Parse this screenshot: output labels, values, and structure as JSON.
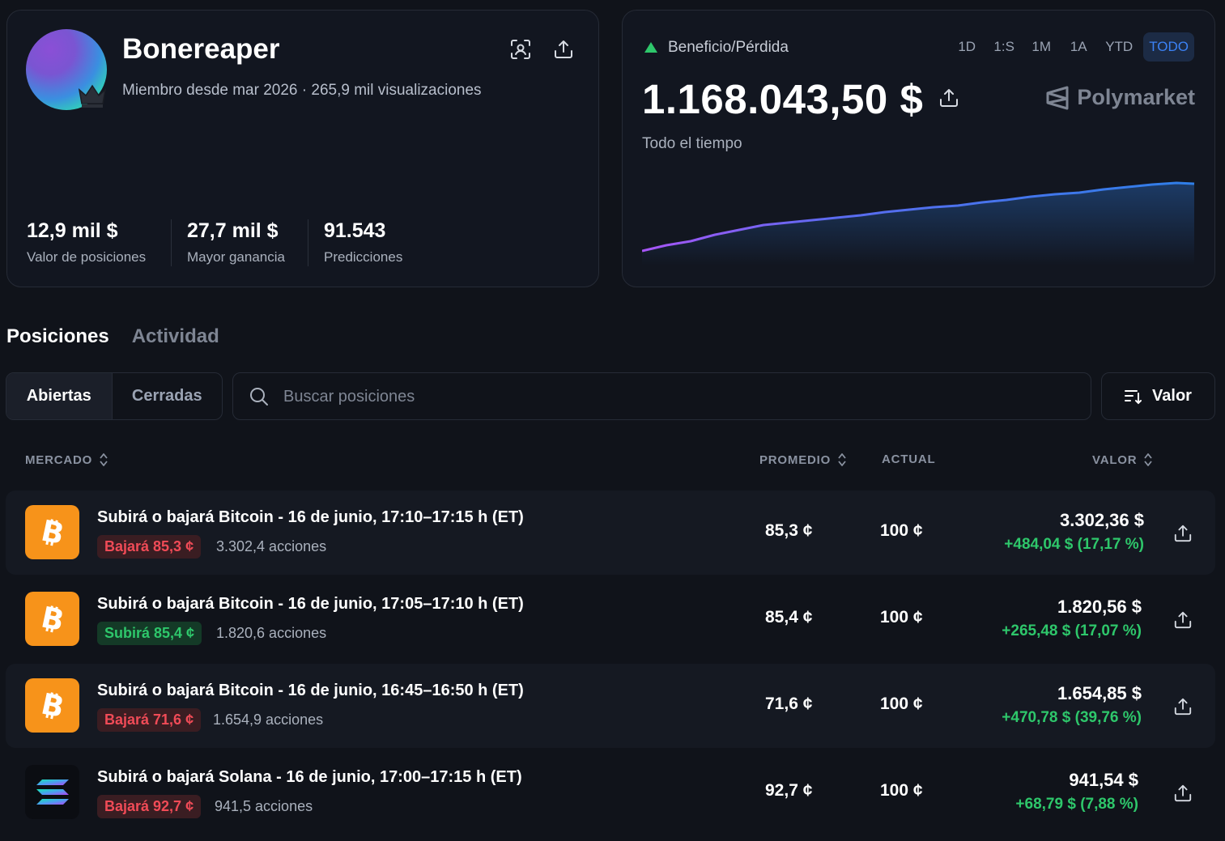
{
  "profile": {
    "username": "Bonereaper",
    "member_info": "Miembro desde mar 2026 · 265,9 mil visualizaciones",
    "stats": [
      {
        "value": "12,9 mil $",
        "label": "Valor de posiciones"
      },
      {
        "value": "27,7 mil $",
        "label": "Mayor ganancia"
      },
      {
        "value": "91.543",
        "label": "Predicciones"
      }
    ]
  },
  "pnl": {
    "label": "Beneficio/Pérdida",
    "value": "1.168.043,50 $",
    "period_label": "Todo el tiempo",
    "brand": "Polymarket",
    "ranges": [
      "1D",
      "1:S",
      "1M",
      "1A",
      "YTD",
      "TODO"
    ],
    "active_range": "TODO",
    "colors": {
      "accent": "#3b82f6",
      "line_start": "#a855f7",
      "line_end": "#2f7fe8",
      "positive": "#2ec76b"
    }
  },
  "tabs": {
    "positions": "Posiciones",
    "activity": "Actividad"
  },
  "filters": {
    "open": "Abiertas",
    "closed": "Cerradas"
  },
  "search": {
    "placeholder": "Buscar posiciones"
  },
  "sort": {
    "label": "Valor"
  },
  "columns": {
    "market": "MERCADO",
    "average": "PROMEDIO",
    "current": "ACTUAL",
    "value": "VALOR"
  },
  "positions": [
    {
      "asset": "bitcoin-icon",
      "title": "Subirá o bajará Bitcoin - 16 de junio, 17:10–17:15 h (ET)",
      "side": "Bajará 85,3 ¢",
      "direction": "down",
      "shares": "3.302,4 acciones",
      "average": "85,3 ¢",
      "current": "100 ¢",
      "value": "3.302,36 $",
      "change": "+484,04 $ (17,17 %)"
    },
    {
      "asset": "bitcoin-icon",
      "title": "Subirá o bajará Bitcoin - 16 de junio, 17:05–17:10 h (ET)",
      "side": "Subirá 85,4 ¢",
      "direction": "up",
      "shares": "1.820,6 acciones",
      "average": "85,4 ¢",
      "current": "100 ¢",
      "value": "1.820,56 $",
      "change": "+265,48 $ (17,07 %)"
    },
    {
      "asset": "bitcoin-icon",
      "title": "Subirá o bajará Bitcoin - 16 de junio, 16:45–16:50 h (ET)",
      "side": "Bajará 71,6 ¢",
      "direction": "down",
      "shares": "1.654,9 acciones",
      "average": "71,6 ¢",
      "current": "100 ¢",
      "value": "1.654,85 $",
      "change": "+470,78 $ (39,76 %)"
    },
    {
      "asset": "solana-icon",
      "title": "Subirá o bajará Solana - 16 de junio, 17:00–17:15 h (ET)",
      "side": "Bajará 92,7 ¢",
      "direction": "down",
      "shares": "941,5 acciones",
      "average": "92,7 ¢",
      "current": "100 ¢",
      "value": "941,54 $",
      "change": "+68,79 $ (7,88 %)"
    }
  ]
}
